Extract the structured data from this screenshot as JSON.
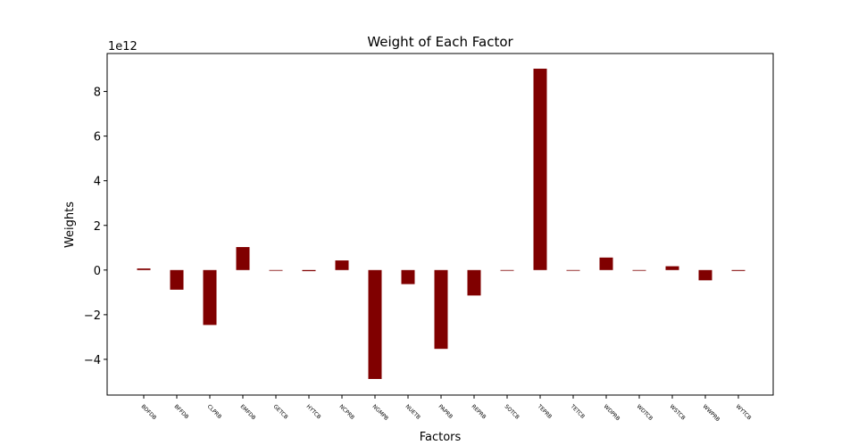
{
  "chart_data": {
    "type": "bar",
    "title": "Weight of Each Factor",
    "xlabel": "Factors",
    "ylabel": "Weights",
    "y_offset_label": "1e12",
    "y_scale": 1000000000000.0,
    "ylim": [
      -5.6,
      9.7
    ],
    "yticks": [
      -4,
      -2,
      0,
      2,
      4,
      6,
      8
    ],
    "ytick_labels": [
      "−4",
      "−2",
      "0",
      "2",
      "4",
      "6",
      "8"
    ],
    "grid": false,
    "legend": "none",
    "bar_color": "#800000",
    "categories": [
      "BDFDB",
      "BFFDB",
      "CLPRB",
      "EMFDB",
      "GETCB",
      "HYTCB",
      "NCPRB",
      "NGMPB",
      "NUETB",
      "PAPRB",
      "REPRB",
      "SOTCB",
      "TEPRB",
      "TETCB",
      "WDPRB",
      "WDTCB",
      "WSTCB",
      "WWPRB",
      "WYTCB"
    ],
    "values": [
      0.07,
      -0.88,
      -2.46,
      1.03,
      0.0,
      -0.05,
      0.43,
      -4.88,
      -0.63,
      -3.53,
      -1.14,
      0.0,
      9.02,
      0.0,
      0.56,
      0.0,
      0.17,
      -0.46,
      -0.04
    ]
  }
}
